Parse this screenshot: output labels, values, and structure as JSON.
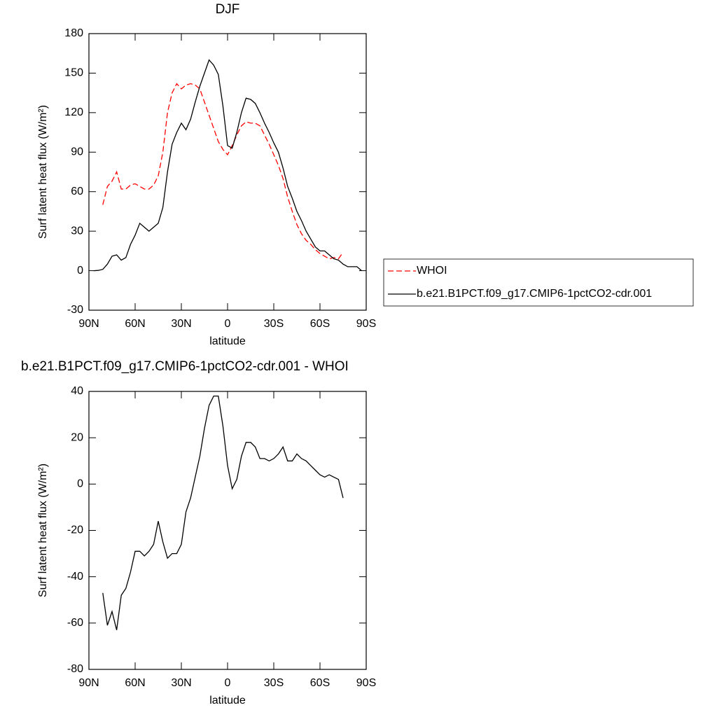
{
  "chart_data": [
    {
      "type": "line",
      "title": "DJF",
      "xlabel": "latitude",
      "ylabel": "Surf latent heat flux (W/m²)",
      "x": [
        87,
        84,
        81,
        78,
        75,
        72,
        69,
        66,
        63,
        60,
        57,
        54,
        51,
        48,
        45,
        42,
        39,
        36,
        33,
        30,
        27,
        24,
        21,
        18,
        15,
        12,
        9,
        6,
        3,
        0,
        -3,
        -6,
        -9,
        -12,
        -15,
        -18,
        -21,
        -24,
        -27,
        -30,
        -33,
        -36,
        -39,
        -42,
        -45,
        -48,
        -51,
        -54,
        -57,
        -60,
        -63,
        -66,
        -69,
        -72,
        -75,
        -78,
        -81,
        -84,
        -87
      ],
      "series": [
        {
          "name": "WHOI",
          "color": "#ff0000",
          "dash": true,
          "values": [
            null,
            null,
            50,
            64,
            68,
            75,
            62,
            62,
            65,
            66,
            64,
            62,
            62,
            65,
            72,
            90,
            120,
            135,
            142,
            138,
            141,
            142,
            141,
            138,
            128,
            118,
            108,
            98,
            92,
            88,
            95,
            103,
            110,
            113,
            112,
            112,
            110,
            103,
            96,
            88,
            80,
            70,
            56,
            45,
            35,
            28,
            23,
            20,
            16,
            13,
            11,
            9,
            10,
            9,
            14,
            null,
            null,
            null,
            null
          ]
        },
        {
          "name": "b.e21.B1PCT.f09_g17.CMIP6-1pctCO2-cdr.001",
          "color": "#000000",
          "dash": false,
          "values": [
            0,
            0.2,
            1,
            5,
            11,
            12,
            8,
            10,
            20,
            27,
            36,
            33,
            30,
            33,
            36,
            48,
            75,
            96,
            105,
            112,
            107,
            115,
            128,
            140,
            150,
            160,
            156,
            149,
            125,
            95,
            93,
            105,
            120,
            131,
            130,
            127,
            120,
            112,
            105,
            97,
            90,
            78,
            64,
            55,
            45,
            38,
            30,
            24,
            18,
            15,
            15,
            12,
            9,
            8,
            5,
            3,
            3,
            3,
            0
          ]
        }
      ],
      "xlim": [
        90,
        -90
      ],
      "xticks": [
        {
          "value": 90,
          "label": "90N"
        },
        {
          "value": 60,
          "label": "60N"
        },
        {
          "value": 30,
          "label": "30N"
        },
        0,
        {
          "value": -30,
          "label": "30S"
        },
        {
          "value": -60,
          "label": "60S"
        },
        {
          "value": -90,
          "label": "90S"
        }
      ],
      "ylim": [
        -30,
        180
      ],
      "yticks": [
        -30,
        0,
        30,
        60,
        90,
        120,
        150,
        180
      ],
      "legend": "right"
    },
    {
      "type": "line",
      "title": "b.e21.B1PCT.f09_g17.CMIP6-1pctCO2-cdr.001 - WHOI",
      "xlabel": "latitude",
      "ylabel": "Surf latent heat flux (W/m²)",
      "x": [
        81,
        78,
        75,
        72,
        69,
        66,
        63,
        60,
        57,
        54,
        51,
        48,
        45,
        42,
        39,
        36,
        33,
        30,
        27,
        24,
        21,
        18,
        15,
        12,
        9,
        6,
        3,
        0,
        -3,
        -6,
        -9,
        -12,
        -15,
        -18,
        -21,
        -24,
        -27,
        -30,
        -33,
        -36,
        -39,
        -42,
        -45,
        -48,
        -51,
        -54,
        -57,
        -60,
        -63,
        -66,
        -69,
        -72,
        -75
      ],
      "series": [
        {
          "color": "#000000",
          "dash": false,
          "values": [
            -47,
            -61,
            -55,
            -63,
            -48,
            -45,
            -38,
            -29,
            -29,
            -31,
            -29,
            -26,
            -16,
            -25,
            -32,
            -30,
            -30,
            -26,
            -12,
            -6,
            3,
            12,
            24,
            34,
            38,
            38,
            25,
            8,
            -2,
            2,
            12,
            18,
            18,
            16,
            11,
            11,
            10,
            11,
            13,
            16,
            10,
            10,
            13,
            11,
            10,
            8,
            6,
            4,
            3,
            4,
            3,
            2,
            -6
          ]
        }
      ],
      "xlim": [
        90,
        -90
      ],
      "xticks": [
        {
          "value": 90,
          "label": "90N"
        },
        {
          "value": 60,
          "label": "60N"
        },
        {
          "value": 30,
          "label": "30N"
        },
        0,
        {
          "value": -30,
          "label": "30S"
        },
        {
          "value": -60,
          "label": "60S"
        },
        {
          "value": -90,
          "label": "90S"
        }
      ],
      "ylim": [
        -80,
        40
      ],
      "yticks": [
        -80,
        -60,
        -40,
        -20,
        0,
        20,
        40
      ]
    }
  ]
}
